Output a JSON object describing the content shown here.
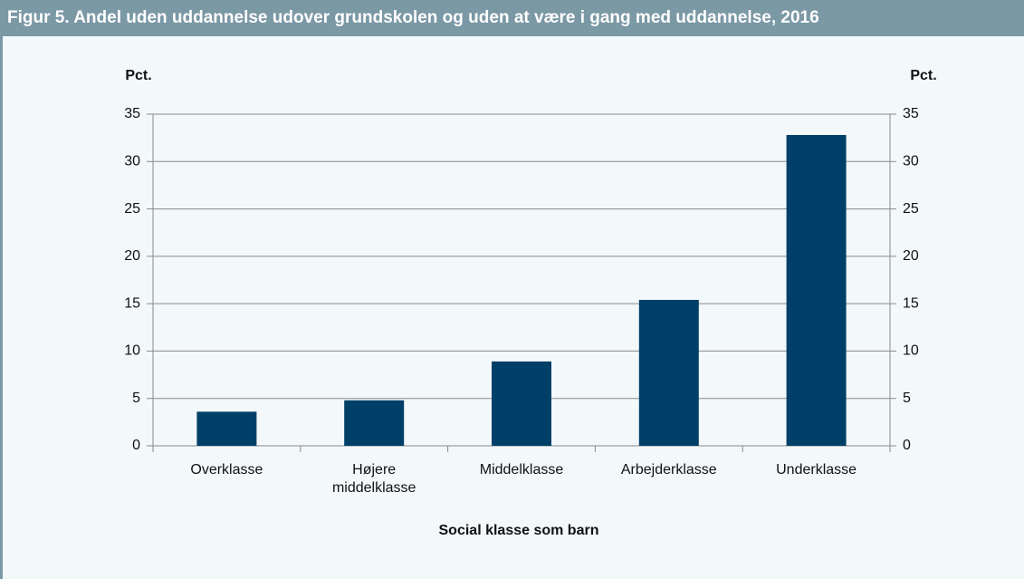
{
  "chart_data": {
    "type": "bar",
    "title": "Figur 5. Andel uden uddannelse udover grundskolen og uden at være i gang med uddannelse, 2016",
    "ylabel": "Pct.",
    "y2label": "Pct.",
    "xlabel": "Social klasse som barn",
    "categories": [
      "Overklasse",
      "Højere middelklasse",
      "Middelklasse",
      "Arbejderklasse",
      "Underklasse"
    ],
    "values": [
      3.6,
      4.8,
      8.9,
      15.4,
      32.8
    ],
    "color": "#004068",
    "ylim": [
      0,
      35
    ],
    "yticks": [
      0,
      5,
      10,
      15,
      20,
      25,
      30,
      35
    ],
    "y2lim": [
      0,
      35
    ],
    "y2ticks": [
      0,
      5,
      10,
      15,
      20,
      25,
      30,
      35
    ],
    "grid": true
  }
}
